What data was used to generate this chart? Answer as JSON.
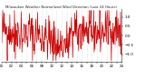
{
  "title": "Milwaukee Weather Normalized Wind Direction (Last 24 Hours)",
  "line_color": "#cc0000",
  "line_width": 0.5,
  "background_color": "#ffffff",
  "grid_color": "#bbbbbb",
  "ylim": [
    -1.4,
    1.4
  ],
  "y_ticks": [
    -1.0,
    -0.5,
    0.0,
    0.5,
    1.0
  ],
  "n_points": 288,
  "seed": 42
}
